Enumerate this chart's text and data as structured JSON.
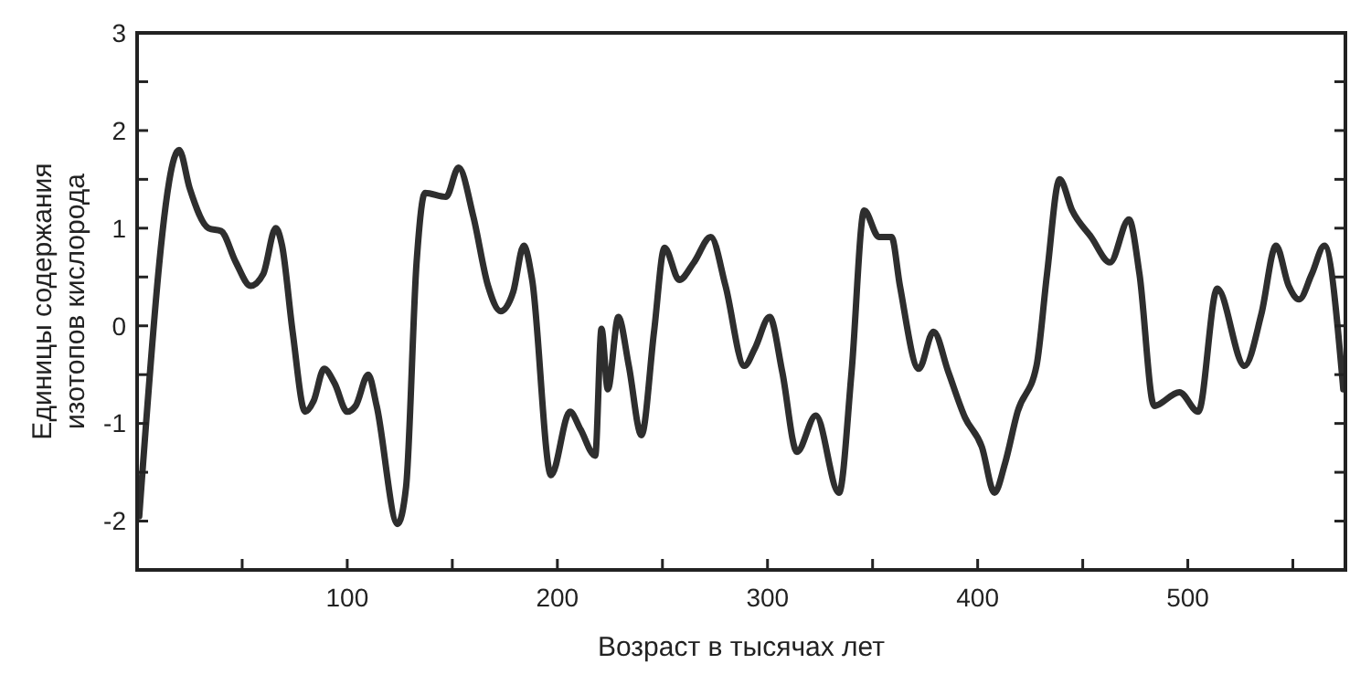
{
  "chart_data": {
    "type": "line",
    "xlabel": "Возраст в тысячах лет",
    "ylabel": "Единицы содержания\nизотопов кислорода",
    "xlim": [
      0,
      575
    ],
    "ylim": [
      -2.5,
      3
    ],
    "xticks": [
      {
        "value": 50,
        "label": null
      },
      100,
      {
        "value": 150,
        "label": null
      },
      200,
      {
        "value": 250,
        "label": null
      },
      300,
      {
        "value": 350,
        "label": null
      },
      400,
      {
        "value": 450,
        "label": null
      },
      500,
      {
        "value": 550,
        "label": null
      }
    ],
    "yticks": [
      -2,
      {
        "value": -1.5,
        "label": null
      },
      -1,
      {
        "value": -0.5,
        "label": null
      },
      0,
      {
        "value": 0.5,
        "label": null
      },
      1,
      {
        "value": 1.5,
        "label": null
      },
      2,
      {
        "value": 2.5,
        "label": null
      },
      3
    ],
    "grid": false,
    "marker": "none",
    "line_style": "solid",
    "series": [
      {
        "color": "#2e2e2e",
        "x": [
          1,
          20,
          25,
          34,
          40,
          47,
          54,
          60,
          66,
          69,
          74,
          80,
          84,
          89,
          94,
          100,
          104,
          110,
          114,
          124,
          128,
          133,
          137,
          147,
          153,
          160,
          167,
          173,
          179,
          184,
          188,
          197,
          206,
          211,
          218,
          221,
          224,
          229,
          234,
          240,
          246,
          251,
          258,
          265,
          273,
          280,
          289,
          294,
          301,
          307,
          314,
          323,
          334,
          340,
          346,
          353,
          359,
          363,
          372,
          379,
          386,
          394,
          402,
          408,
          413,
          419,
          428,
          433,
          439,
          445,
          454,
          463,
          472,
          477,
          484,
          496,
          505,
          514,
          527,
          535,
          542,
          548,
          553,
          559,
          565,
          574
        ],
        "values": [
          -1.95,
          1.8,
          1.41,
          1.0,
          0.97,
          0.65,
          0.41,
          0.53,
          1.0,
          0.82,
          -0.06,
          -0.88,
          -0.77,
          -0.44,
          -0.59,
          -0.88,
          -0.82,
          -0.5,
          -0.82,
          -2.03,
          -1.65,
          0.65,
          1.36,
          1.32,
          1.62,
          1.12,
          0.41,
          0.15,
          0.35,
          0.82,
          0.47,
          -1.53,
          -0.88,
          -1.06,
          -1.33,
          -0.03,
          -0.65,
          0.09,
          -0.41,
          -1.12,
          -0.06,
          0.8,
          0.47,
          0.65,
          0.91,
          0.41,
          -0.41,
          -0.23,
          0.09,
          -0.47,
          -1.29,
          -0.92,
          -1.71,
          -0.47,
          1.18,
          0.91,
          0.91,
          0.41,
          -0.44,
          -0.06,
          -0.47,
          -0.94,
          -1.24,
          -1.71,
          -1.41,
          -0.88,
          -0.41,
          0.53,
          1.5,
          1.18,
          0.91,
          0.65,
          1.09,
          0.53,
          -0.82,
          -0.68,
          -0.88,
          0.38,
          -0.41,
          0.12,
          0.82,
          0.41,
          0.27,
          0.53,
          0.82,
          -0.65
        ]
      }
    ]
  }
}
